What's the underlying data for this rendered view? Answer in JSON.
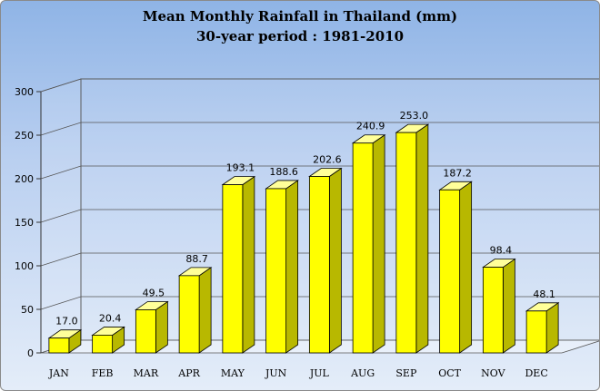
{
  "chart_data": {
    "type": "bar",
    "title": "Mean Monthly Rainfall in Thailand (mm)",
    "subtitle": "30-year period : 1981-2010",
    "categories": [
      "JAN",
      "FEB",
      "MAR",
      "APR",
      "MAY",
      "JUN",
      "JUL",
      "AUG",
      "SEP",
      "OCT",
      "NOV",
      "DEC"
    ],
    "values": [
      17.0,
      20.4,
      49.5,
      88.7,
      193.1,
      188.6,
      202.6,
      240.9,
      253.0,
      187.2,
      98.4,
      48.1
    ],
    "value_labels": [
      "17.0",
      "20.4",
      "49.5",
      "88.7",
      "193.1",
      "188.6",
      "202.6",
      "240.9",
      "253.0",
      "187.2",
      "98.4",
      "48.1"
    ],
    "y_ticks": [
      "0",
      "50",
      "100",
      "150",
      "200",
      "250",
      "300"
    ],
    "ylim": [
      0,
      300
    ],
    "grid": true,
    "legend": "none",
    "colors": {
      "bar_front": "#ffff00",
      "bar_side": "#b8b800",
      "bar_top": "#ffff99",
      "bar_edge": "#000000",
      "gridline": "#555555"
    }
  }
}
